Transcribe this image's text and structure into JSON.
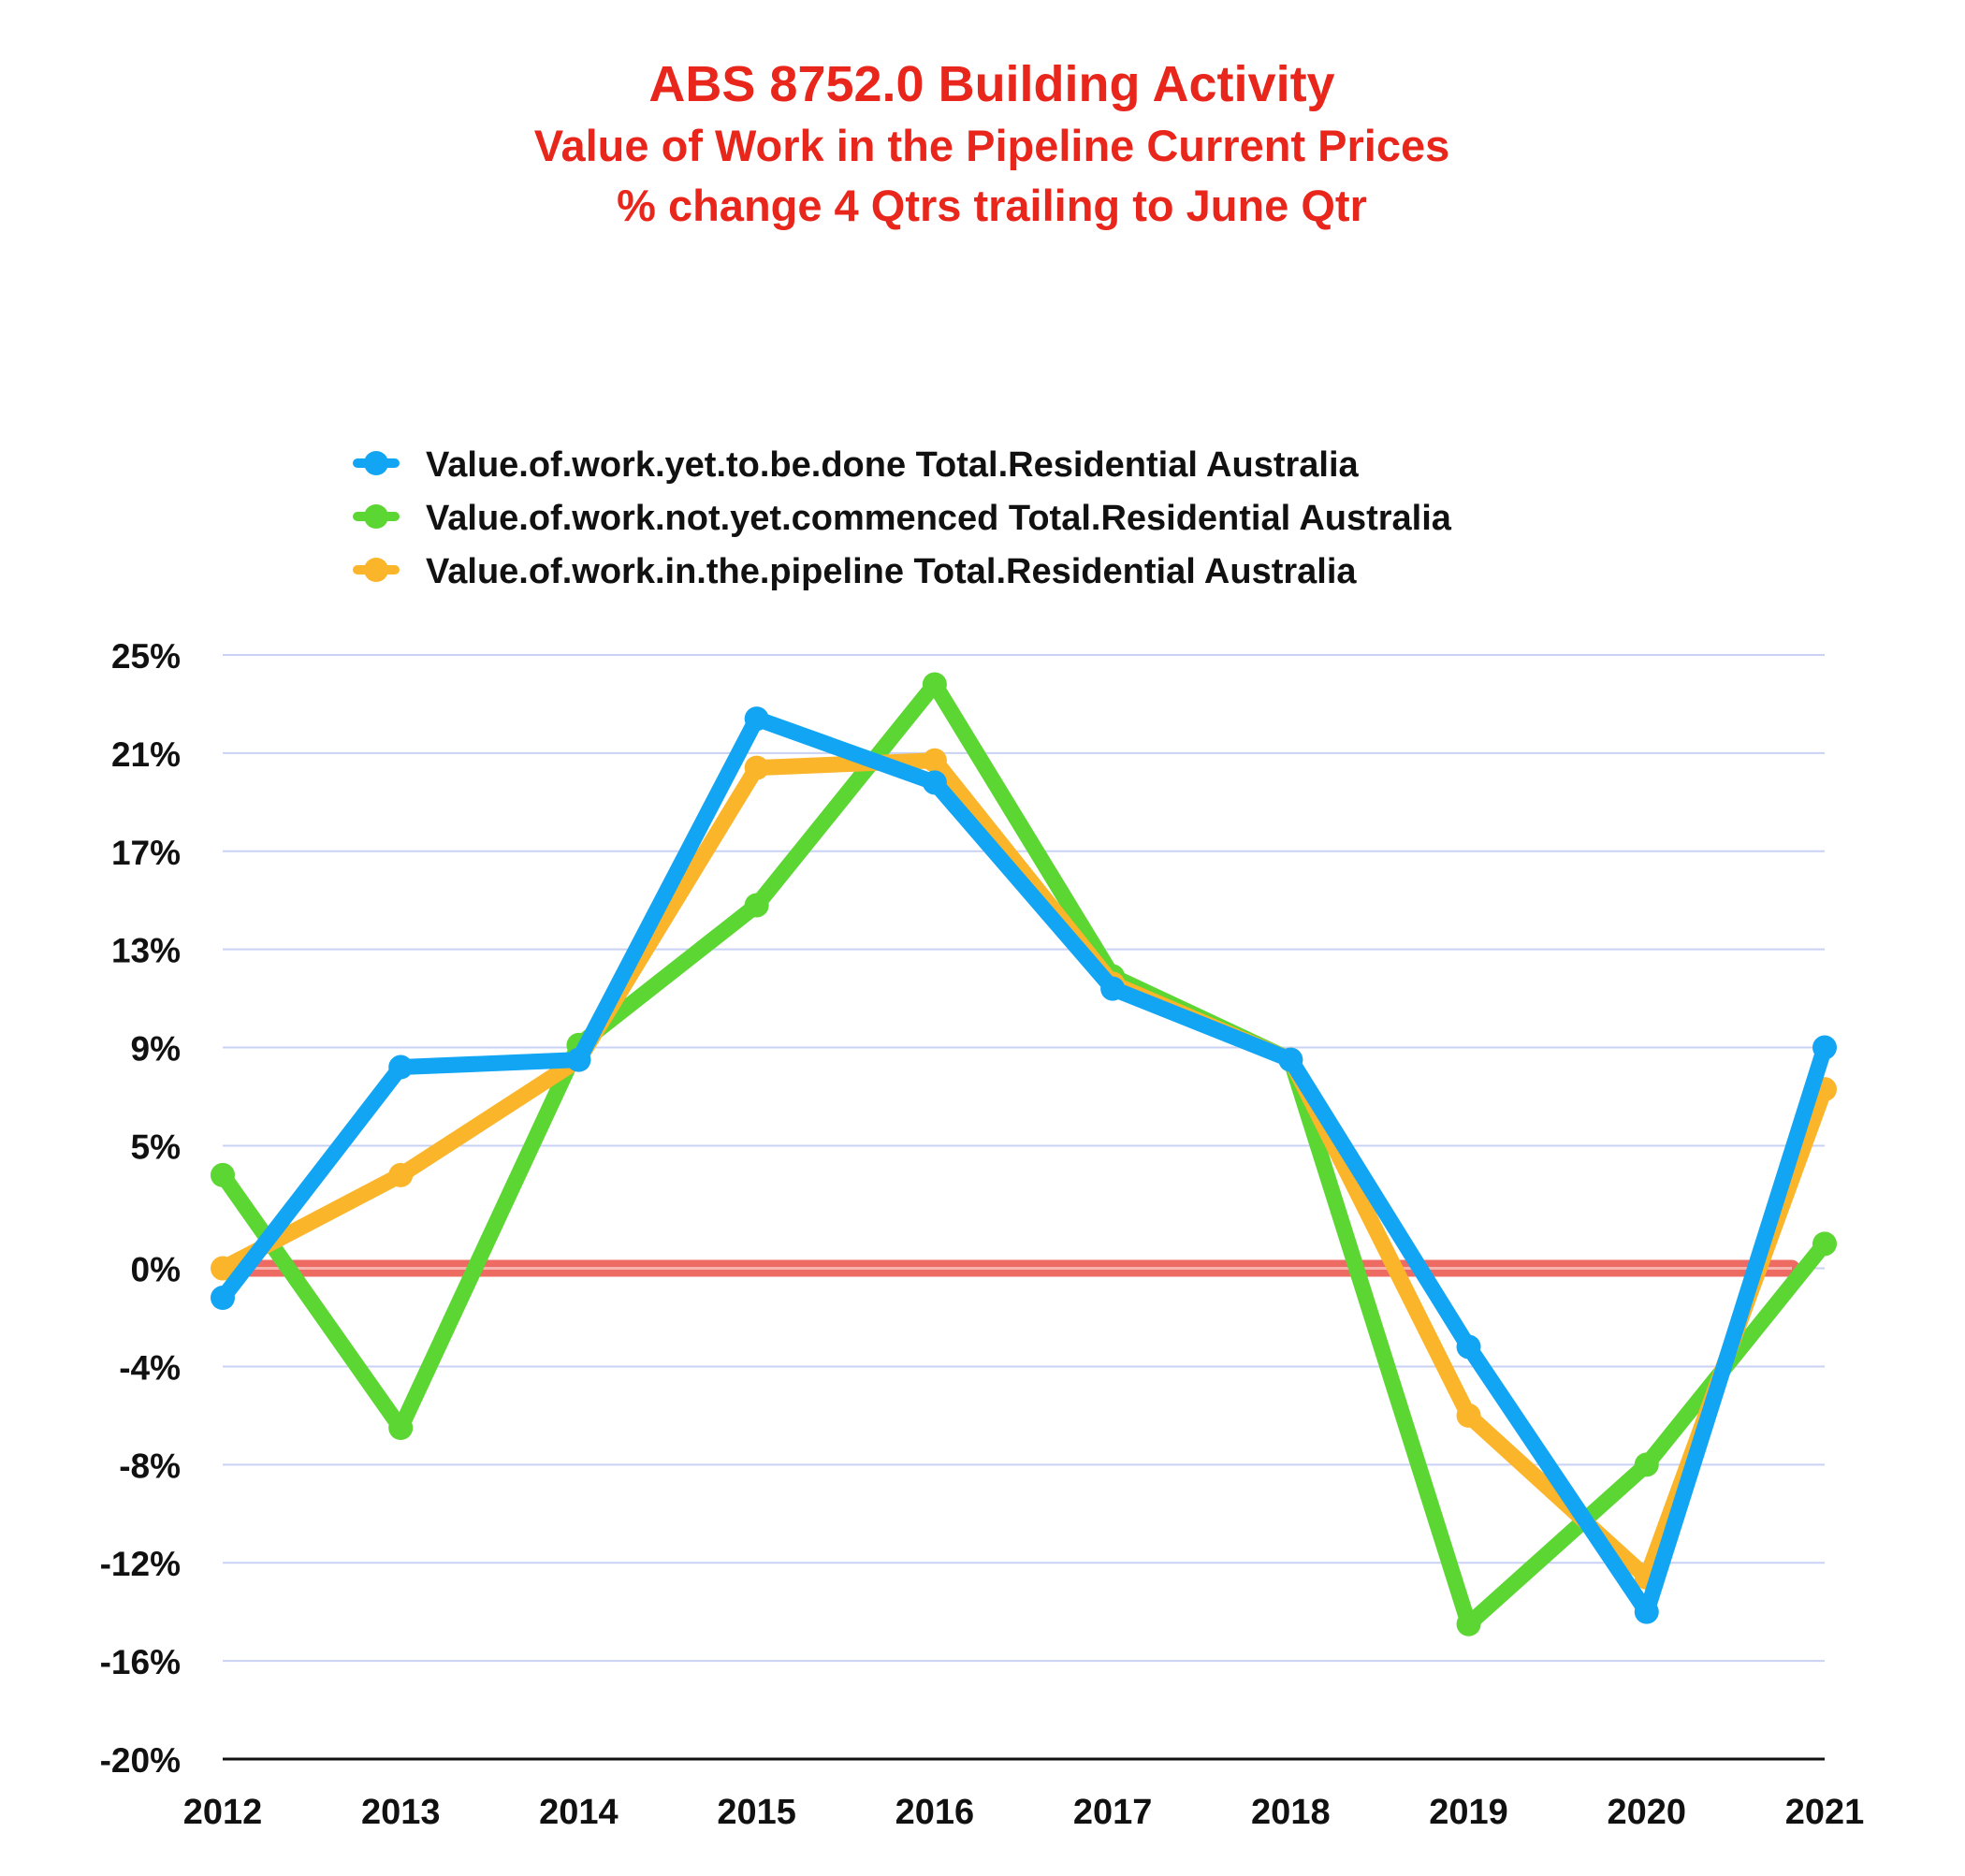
{
  "chart_data": {
    "type": "line",
    "title": {
      "line1": "ABS 8752.0 Building Activity",
      "line2": "Value of Work in the Pipeline Current Prices",
      "line3": "% change 4 Qtrs trailing to June Qtr"
    },
    "xlabel": "",
    "ylabel": "",
    "categories": [
      "2012",
      "2013",
      "2014",
      "2015",
      "2016",
      "2017",
      "2018",
      "2019",
      "2020",
      "2021"
    ],
    "ylim": [
      -20,
      25
    ],
    "yticks": [
      -20,
      -16,
      -12,
      -8,
      -4,
      0,
      5,
      9,
      13,
      17,
      21,
      25
    ],
    "ytick_labels": [
      "-20%",
      "-16%",
      "-12%",
      "-8%",
      "-4%",
      "0%",
      "5%",
      "9%",
      "13%",
      "17%",
      "21%",
      "25%"
    ],
    "grid": true,
    "legend_position": "top-center",
    "series": [
      {
        "name": "Value.of.work.yet.to.be.done  Total.Residential  Australia",
        "color": "#12a5f4",
        "values": [
          -1.2,
          8.2,
          8.5,
          22.4,
          19.8,
          11.4,
          8.5,
          -3.2,
          -14.0,
          9.0
        ]
      },
      {
        "name": "Value.of.work.not.yet.commenced  Total.Residential  Australia",
        "color": "#5cd633",
        "values": [
          3.8,
          -6.5,
          9.1,
          14.8,
          23.8,
          11.9,
          8.5,
          -14.5,
          -8.0,
          1.0
        ]
      },
      {
        "name": "Value.of.work.in.the.pipeline  Total.Residential  Australia",
        "color": "#fbb52a",
        "values": [
          0.0,
          3.8,
          8.5,
          20.4,
          20.7,
          11.6,
          8.5,
          -6.0,
          -12.6,
          7.3
        ]
      }
    ],
    "reference_line": {
      "value": 0,
      "color": "#ee6b63"
    },
    "colors": {
      "title": "#e8261c",
      "grid": "#c9d2f5",
      "axis": "#111111",
      "tick_text": "#111111"
    }
  }
}
